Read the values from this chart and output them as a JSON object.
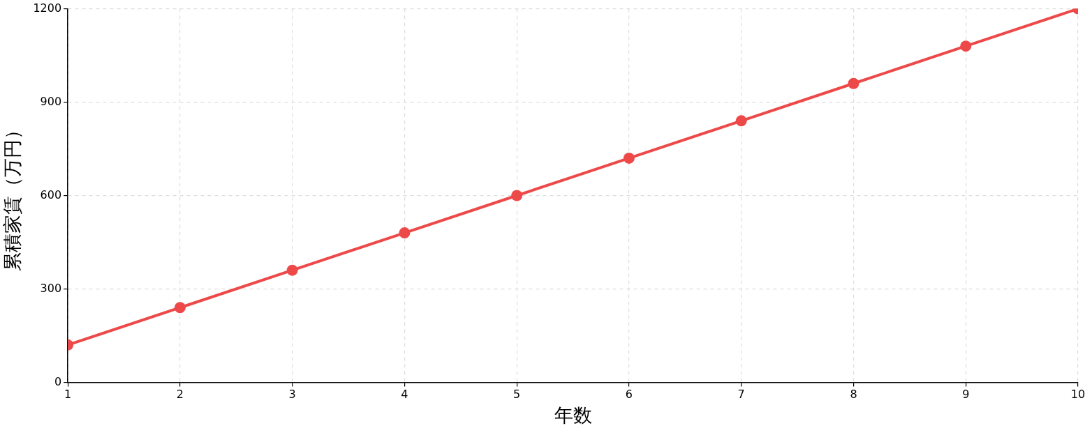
{
  "chart_data": {
    "type": "line",
    "xlabel": "年数",
    "ylabel": "累積家賃（万円）",
    "x": [
      1,
      2,
      3,
      4,
      5,
      6,
      7,
      8,
      9,
      10
    ],
    "series": [
      {
        "color": "#ee4949",
        "values": [
          120,
          240,
          360,
          480,
          600,
          720,
          840,
          960,
          1080,
          1200
        ]
      }
    ],
    "xlim": [
      1,
      10
    ],
    "xticks": [
      1,
      2,
      3,
      4,
      5,
      6,
      7,
      8,
      9,
      10
    ],
    "ylim": [
      0,
      1200
    ],
    "yticks": [
      0,
      300,
      600,
      900,
      1200
    ],
    "grid": true,
    "legend": false,
    "marker": "circle",
    "line_style": "solid"
  }
}
